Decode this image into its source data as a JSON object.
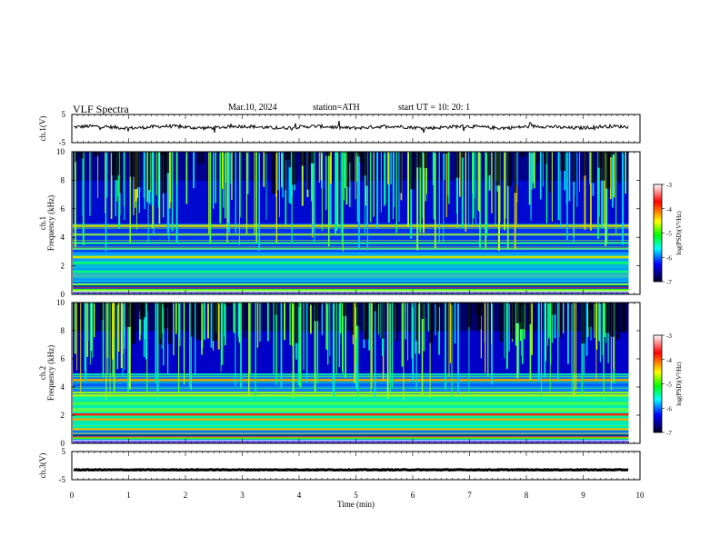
{
  "header": {
    "title": "VLF  Spectra",
    "date": "Mar.10, 2024",
    "station": "station=ATH",
    "start_ut": "start  UT  =    10: 20: 1"
  },
  "chart_data": [
    {
      "type": "line",
      "panel": "ch1-waveform",
      "ylabel": "ch.1(V)",
      "yticks": [
        "5",
        "-5"
      ],
      "ylim": [
        -5,
        5
      ],
      "approx_level": 0.5,
      "x_range_min": [
        0,
        9.8
      ]
    },
    {
      "type": "heatmap",
      "panel": "ch1-spectrogram",
      "ylabel": "ch.1\nFrequency  (kHz)",
      "yticks": [
        "0",
        "2",
        "4",
        "6",
        "8",
        "10"
      ],
      "ylim_khz": [
        0,
        10
      ],
      "x_range_min": [
        0,
        9.8
      ],
      "strong_bands_khz": [
        0.3,
        0.7,
        1.6,
        2.2,
        2.6,
        3.2,
        3.6,
        4.2,
        4.8
      ],
      "colorbar": {
        "label": "log(PSD)(V²/Hz)",
        "ticks": [
          "-3",
          "-4",
          "-5",
          "-6",
          "-7"
        ],
        "range": [
          -7,
          -3
        ],
        "colors": [
          "#ffffff",
          "#ff0000",
          "#ffff00",
          "#00ff00",
          "#00ffff",
          "#0000ff",
          "#000033"
        ]
      }
    },
    {
      "type": "heatmap",
      "panel": "ch2-spectrogram",
      "ylabel": "ch.2\nFrequency  (kHz)",
      "yticks": [
        "0",
        "2",
        "4",
        "6",
        "8",
        "10"
      ],
      "ylim_khz": [
        0,
        10
      ],
      "x_range_min": [
        0,
        9.8
      ],
      "strong_bands_khz": [
        0.4,
        1.0,
        1.7,
        2.05,
        2.3,
        2.8,
        3.4,
        3.6,
        4.5
      ],
      "colorbar": {
        "label": "log(PSD)(V²/Hz)",
        "ticks": [
          "-3",
          "-4",
          "-5",
          "-6",
          "-7"
        ],
        "range": [
          -7,
          -3
        ],
        "colors": [
          "#ffffff",
          "#ff0000",
          "#ffff00",
          "#00ff00",
          "#00ffff",
          "#0000ff",
          "#000033"
        ]
      }
    },
    {
      "type": "line",
      "panel": "ch3-waveform",
      "ylabel": "ch.3(V)",
      "yticks": [
        "5",
        "-5"
      ],
      "ylim": [
        -5,
        5
      ],
      "approx_level": -1.5,
      "x_range_min": [
        0,
        9.8
      ]
    }
  ],
  "xaxis": {
    "label": "Time  (min)",
    "ticks": [
      "0",
      "1",
      "2",
      "3",
      "4",
      "5",
      "6",
      "7",
      "8",
      "9",
      "10"
    ],
    "range": [
      0,
      10
    ]
  }
}
